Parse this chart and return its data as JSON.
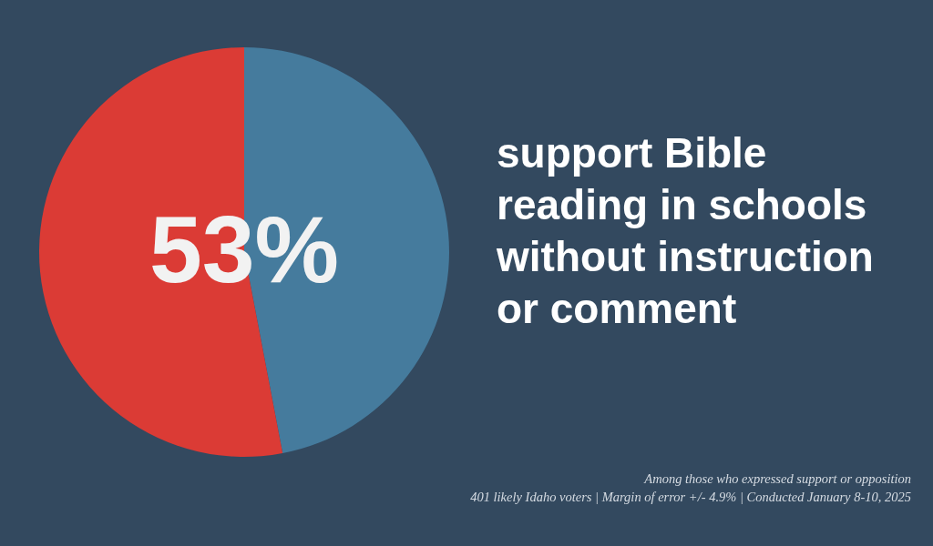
{
  "chart_data": {
    "type": "pie",
    "title": "support Bible reading in schools without instruction or comment",
    "categories": [
      null,
      null
    ],
    "values": [
      47,
      53
    ],
    "colors": [
      "#457b9d",
      "#db3b35"
    ],
    "value_labels": [
      null,
      "53%"
    ],
    "annotations": [
      "Among those who expressed support or opposition",
      "401 likely Idaho voters | Margin of error +/- 4.9% | Conducted January 8-10, 2025"
    ]
  }
}
